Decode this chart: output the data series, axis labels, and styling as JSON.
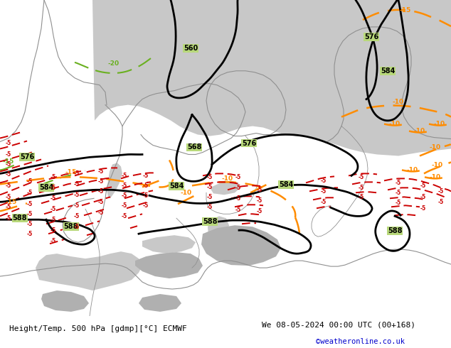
{
  "title_left": "Height/Temp. 500 hPa [gdmp][°C] ECMWF",
  "title_right": "We 08-05-2024 00:00 UTC (00+168)",
  "credit": "©weatheronline.co.uk",
  "bg_color": "#b8d87a",
  "sea_color": "#c8c8c8",
  "highland_color": "#b0b0b0",
  "z500_color": "#000000",
  "orange_color": "#ff8c00",
  "red_color": "#cc0000",
  "green_dash_color": "#6ab020",
  "teal_color": "#00aaaa",
  "bottom_bg": "#ffffff",
  "bottom_text": "#000000",
  "credit_color": "#0000cc"
}
